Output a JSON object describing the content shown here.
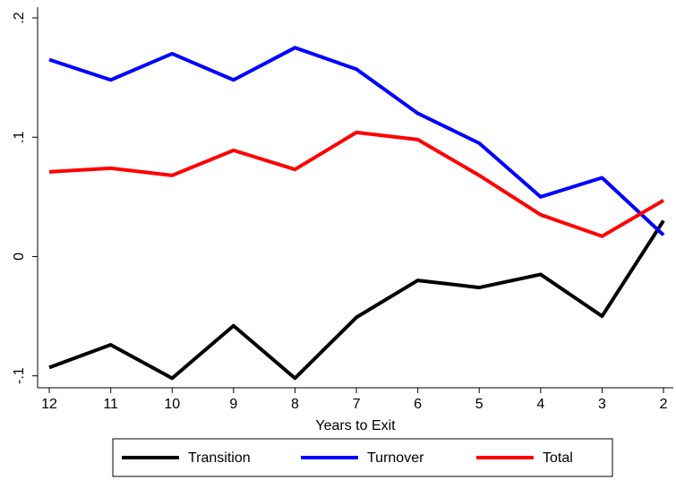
{
  "chart_data": {
    "type": "line",
    "x": [
      12,
      11,
      10,
      9,
      8,
      7,
      6,
      5,
      4,
      3,
      2
    ],
    "xlim": [
      12.19,
      1.84
    ],
    "xticks": [
      12,
      11,
      10,
      9,
      8,
      7,
      6,
      5,
      4,
      3,
      2
    ],
    "x_label": "Years to Exit",
    "ylim": [
      -0.11,
      0.209
    ],
    "yticks": [
      {
        "value": -0.1,
        "label": "-.1"
      },
      0,
      {
        "value": 0.1,
        "label": ".1"
      },
      {
        "value": 0.2,
        "label": ".2"
      }
    ],
    "legend": "bottom",
    "series": [
      {
        "name": "Transition",
        "color": "#000000",
        "values": [
          -0.093,
          -0.074,
          -0.102,
          -0.058,
          -0.102,
          -0.051,
          -0.02,
          -0.026,
          -0.015,
          -0.05,
          0.03
        ]
      },
      {
        "name": "Turnover",
        "color": "#0000ff",
        "values": [
          0.165,
          0.148,
          0.17,
          0.148,
          0.175,
          0.157,
          0.12,
          0.095,
          0.05,
          0.066,
          0.018
        ]
      },
      {
        "name": "Total",
        "color": "#ff0000",
        "values": [
          0.071,
          0.074,
          0.068,
          0.089,
          0.073,
          0.104,
          0.098,
          0.068,
          0.035,
          0.017,
          0.047
        ]
      }
    ]
  }
}
